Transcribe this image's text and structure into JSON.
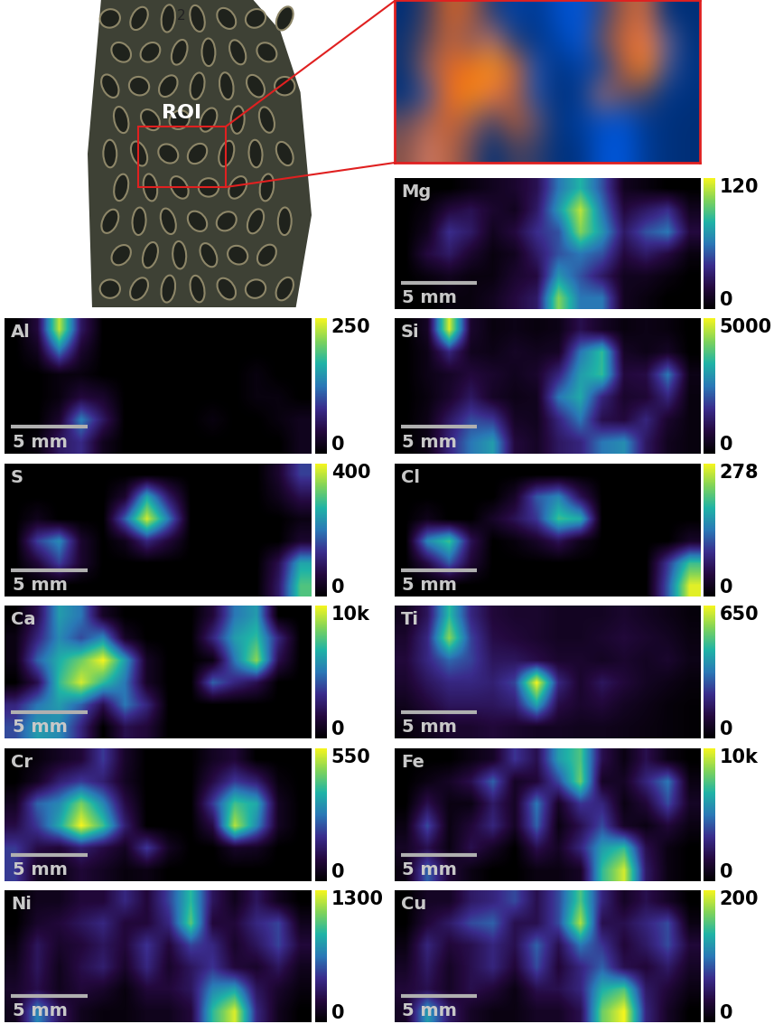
{
  "photo": {
    "label": "ROI",
    "sample": "2"
  },
  "chart_data": [
    {
      "type": "heatmap",
      "title": "Mg",
      "tick_labels": false,
      "xlim": [
        0,
        20
      ],
      "ylim": [
        0,
        8
      ],
      "scale_bar": {
        "label": "5 mm",
        "length": 5
      },
      "clim": [
        0,
        120
      ],
      "cticks": [
        0,
        120
      ],
      "cells": [
        [
          0,
          0,
          0,
          5,
          10,
          15,
          25,
          60,
          80,
          50,
          10,
          5,
          0,
          0
        ],
        [
          0,
          5,
          20,
          25,
          15,
          10,
          30,
          70,
          110,
          60,
          20,
          30,
          40,
          10
        ],
        [
          0,
          10,
          40,
          30,
          10,
          20,
          40,
          50,
          100,
          70,
          30,
          50,
          60,
          20
        ],
        [
          0,
          20,
          30,
          15,
          5,
          10,
          30,
          50,
          60,
          50,
          20,
          30,
          20,
          5
        ],
        [
          0,
          5,
          10,
          5,
          5,
          15,
          20,
          70,
          50,
          30,
          10,
          10,
          5,
          0
        ],
        [
          0,
          0,
          5,
          5,
          10,
          20,
          30,
          100,
          60,
          60,
          10,
          5,
          0,
          0
        ]
      ]
    },
    {
      "type": "heatmap",
      "title": "Al",
      "tick_labels": false,
      "xlim": [
        0,
        20
      ],
      "ylim": [
        0,
        8
      ],
      "scale_bar": {
        "label": "5 mm",
        "length": 5
      },
      "clim": [
        0,
        250
      ],
      "cticks": [
        0,
        250
      ],
      "cells": [
        [
          0,
          40,
          230,
          60,
          0,
          0,
          0,
          0,
          0,
          0,
          0,
          0,
          0,
          0
        ],
        [
          0,
          20,
          120,
          30,
          0,
          0,
          0,
          0,
          0,
          0,
          0,
          0,
          0,
          0
        ],
        [
          0,
          0,
          10,
          10,
          0,
          0,
          0,
          0,
          0,
          0,
          0,
          10,
          0,
          0
        ],
        [
          0,
          0,
          10,
          40,
          30,
          0,
          0,
          0,
          0,
          0,
          0,
          10,
          10,
          0
        ],
        [
          0,
          0,
          30,
          130,
          60,
          0,
          0,
          0,
          0,
          10,
          0,
          0,
          10,
          20
        ],
        [
          0,
          10,
          60,
          80,
          20,
          0,
          0,
          0,
          0,
          0,
          0,
          0,
          0,
          20
        ]
      ]
    },
    {
      "type": "heatmap",
      "title": "Si",
      "tick_labels": false,
      "xlim": [
        0,
        20
      ],
      "ylim": [
        0,
        8
      ],
      "scale_bar": {
        "label": "5 mm",
        "length": 5
      },
      "clim": [
        0,
        5000
      ],
      "cticks": [
        0,
        5000
      ],
      "cells": [
        [
          0,
          500,
          4800,
          600,
          200,
          300,
          200,
          300,
          1000,
          500,
          200,
          300,
          200,
          0
        ],
        [
          0,
          300,
          1500,
          400,
          300,
          500,
          400,
          500,
          2500,
          3500,
          500,
          300,
          500,
          0
        ],
        [
          0,
          300,
          500,
          800,
          600,
          400,
          600,
          1500,
          3000,
          3500,
          800,
          900,
          2500,
          300
        ],
        [
          0,
          200,
          600,
          1200,
          500,
          300,
          400,
          2500,
          3200,
          1500,
          600,
          700,
          1500,
          200
        ],
        [
          0,
          300,
          1200,
          2000,
          1800,
          500,
          400,
          1500,
          2500,
          1000,
          800,
          1500,
          600,
          200
        ],
        [
          0,
          300,
          1500,
          2500,
          3000,
          800,
          500,
          1200,
          1500,
          2500,
          2800,
          1200,
          400,
          200
        ]
      ]
    },
    {
      "type": "heatmap",
      "title": "S",
      "tick_labels": false,
      "xlim": [
        0,
        20
      ],
      "ylim": [
        0,
        8
      ],
      "scale_bar": {
        "label": "5 mm",
        "length": 5
      },
      "clim": [
        0,
        400
      ],
      "cticks": [
        0,
        400
      ],
      "cells": [
        [
          0,
          0,
          0,
          0,
          0,
          0,
          0,
          0,
          0,
          0,
          0,
          0,
          50,
          150
        ],
        [
          0,
          0,
          0,
          0,
          0,
          50,
          250,
          100,
          0,
          0,
          0,
          0,
          30,
          80
        ],
        [
          0,
          30,
          0,
          0,
          0,
          180,
          380,
          200,
          0,
          0,
          0,
          0,
          0,
          20
        ],
        [
          0,
          150,
          220,
          50,
          0,
          30,
          120,
          60,
          0,
          0,
          0,
          0,
          0,
          50
        ],
        [
          0,
          60,
          150,
          50,
          0,
          0,
          0,
          0,
          0,
          0,
          0,
          0,
          80,
          250
        ],
        [
          0,
          0,
          0,
          0,
          0,
          0,
          0,
          0,
          0,
          0,
          0,
          0,
          100,
          300
        ]
      ]
    },
    {
      "type": "heatmap",
      "title": "Cl",
      "tick_labels": false,
      "xlim": [
        0,
        20
      ],
      "ylim": [
        0,
        8
      ],
      "scale_bar": {
        "label": "5 mm",
        "length": 5
      },
      "clim": [
        0,
        278
      ],
      "cticks": [
        0,
        278
      ],
      "cells": [
        [
          0,
          0,
          0,
          0,
          0,
          0,
          0,
          0,
          0,
          0,
          0,
          0,
          0,
          0
        ],
        [
          0,
          0,
          0,
          0,
          0,
          30,
          120,
          150,
          60,
          0,
          0,
          0,
          0,
          0
        ],
        [
          0,
          20,
          0,
          0,
          30,
          60,
          100,
          200,
          180,
          0,
          0,
          0,
          0,
          0
        ],
        [
          0,
          150,
          200,
          60,
          0,
          10,
          30,
          60,
          20,
          0,
          0,
          0,
          0,
          30
        ],
        [
          0,
          50,
          120,
          40,
          0,
          0,
          0,
          0,
          0,
          0,
          0,
          0,
          100,
          200
        ],
        [
          0,
          0,
          0,
          0,
          0,
          0,
          0,
          0,
          0,
          0,
          0,
          0,
          120,
          270
        ]
      ]
    },
    {
      "type": "heatmap",
      "title": "Ca",
      "tick_labels": false,
      "xlim": [
        0,
        20
      ],
      "ylim": [
        0,
        8
      ],
      "scale_bar": {
        "label": "5 mm",
        "length": 5
      },
      "clim": [
        0,
        10000
      ],
      "cticks": [
        0,
        {
          "value": 10000,
          "label": "10k"
        }
      ],
      "cells": [
        [
          0,
          2000,
          6000,
          5000,
          1000,
          0,
          0,
          0,
          0,
          1500,
          5000,
          6000,
          0,
          0
        ],
        [
          500,
          3000,
          5500,
          4000,
          5500,
          1000,
          0,
          0,
          0,
          3000,
          6000,
          7000,
          3000,
          0
        ],
        [
          500,
          4500,
          6500,
          8000,
          10000,
          6000,
          1000,
          0,
          0,
          500,
          5000,
          8500,
          2000,
          0
        ],
        [
          0,
          2000,
          7000,
          9500,
          7000,
          5000,
          1000,
          0,
          0,
          4500,
          3000,
          2000,
          0,
          0
        ],
        [
          3000,
          5000,
          6000,
          4500,
          2000,
          5000,
          3000,
          0,
          0,
          0,
          0,
          0,
          0,
          0
        ],
        [
          4000,
          6000,
          5500,
          3000,
          0,
          2000,
          1500,
          0,
          0,
          0,
          0,
          0,
          0,
          0
        ]
      ]
    },
    {
      "type": "heatmap",
      "title": "Ti",
      "tick_labels": false,
      "xlim": [
        0,
        20
      ],
      "ylim": [
        0,
        8
      ],
      "scale_bar": {
        "label": "5 mm",
        "length": 5
      },
      "clim": [
        0,
        650
      ],
      "cticks": [
        0,
        650
      ],
      "cells": [
        [
          50,
          150,
          450,
          200,
          100,
          80,
          80,
          60,
          60,
          60,
          80,
          60,
          40,
          20
        ],
        [
          80,
          200,
          550,
          250,
          120,
          100,
          80,
          60,
          60,
          80,
          100,
          80,
          60,
          30
        ],
        [
          100,
          200,
          300,
          250,
          150,
          150,
          120,
          80,
          80,
          60,
          80,
          60,
          80,
          40
        ],
        [
          80,
          150,
          200,
          200,
          180,
          250,
          650,
          200,
          80,
          150,
          100,
          60,
          40,
          20
        ],
        [
          50,
          100,
          150,
          150,
          150,
          180,
          400,
          120,
          80,
          100,
          60,
          40,
          20,
          10
        ],
        [
          20,
          50,
          80,
          80,
          100,
          80,
          60,
          60,
          50,
          50,
          40,
          30,
          20,
          10
        ]
      ]
    },
    {
      "type": "heatmap",
      "title": "Cr",
      "tick_labels": false,
      "xlim": [
        0,
        20
      ],
      "ylim": [
        0,
        8
      ],
      "scale_bar": {
        "label": "5 mm",
        "length": 5
      },
      "clim": [
        0,
        550
      ],
      "cticks": [
        0,
        550
      ],
      "cells": [
        [
          0,
          20,
          50,
          80,
          200,
          60,
          0,
          0,
          0,
          50,
          80,
          0,
          0,
          0
        ],
        [
          0,
          50,
          150,
          200,
          150,
          50,
          0,
          0,
          0,
          100,
          200,
          150,
          20,
          0
        ],
        [
          50,
          250,
          300,
          450,
          300,
          100,
          0,
          0,
          0,
          200,
          400,
          350,
          50,
          0
        ],
        [
          100,
          200,
          350,
          550,
          400,
          150,
          0,
          0,
          0,
          100,
          500,
          300,
          50,
          0
        ],
        [
          200,
          100,
          80,
          150,
          100,
          50,
          200,
          50,
          0,
          0,
          60,
          50,
          0,
          0
        ],
        [
          200,
          50,
          30,
          80,
          50,
          20,
          30,
          0,
          0,
          0,
          0,
          0,
          0,
          0
        ]
      ]
    },
    {
      "type": "heatmap",
      "title": "Fe",
      "tick_labels": false,
      "xlim": [
        0,
        20
      ],
      "ylim": [
        0,
        8
      ],
      "scale_bar": {
        "label": "5 mm",
        "length": 5
      },
      "clim": [
        0,
        10000
      ],
      "cticks": [
        0,
        {
          "value": 10000,
          "label": "10k"
        }
      ],
      "cells": [
        [
          0,
          0,
          0,
          500,
          1000,
          3500,
          2000,
          6000,
          7500,
          2000,
          500,
          2000,
          500,
          0
        ],
        [
          0,
          500,
          1000,
          2000,
          4500,
          1000,
          1500,
          4000,
          8000,
          1000,
          1000,
          3000,
          5000,
          500
        ],
        [
          0,
          2000,
          500,
          500,
          2500,
          1000,
          5000,
          1000,
          3500,
          3000,
          500,
          1500,
          4000,
          1000
        ],
        [
          500,
          4000,
          500,
          1500,
          3000,
          1000,
          4500,
          500,
          2000,
          4000,
          1000,
          500,
          1500,
          500
        ],
        [
          1000,
          2000,
          500,
          2000,
          1000,
          0,
          2000,
          1000,
          3000,
          6000,
          7000,
          2000,
          500,
          0
        ],
        [
          500,
          4500,
          1500,
          500,
          0,
          0,
          500,
          500,
          1000,
          7000,
          9500,
          2500,
          500,
          0
        ]
      ]
    },
    {
      "type": "heatmap",
      "title": "Ni",
      "tick_labels": false,
      "xlim": [
        0,
        20
      ],
      "ylim": [
        0,
        8
      ],
      "scale_bar": {
        "label": "5 mm",
        "length": 5
      },
      "clim": [
        0,
        1300
      ],
      "cticks": [
        0,
        1300
      ],
      "cells": [
        [
          0,
          100,
          100,
          200,
          200,
          400,
          200,
          500,
          900,
          300,
          100,
          300,
          100,
          0
        ],
        [
          0,
          150,
          200,
          300,
          400,
          200,
          200,
          400,
          1000,
          200,
          200,
          400,
          500,
          100
        ],
        [
          50,
          300,
          150,
          200,
          300,
          200,
          450,
          200,
          500,
          400,
          150,
          300,
          500,
          200
        ],
        [
          100,
          300,
          100,
          250,
          350,
          150,
          400,
          150,
          300,
          450,
          200,
          150,
          300,
          100
        ],
        [
          150,
          250,
          100,
          200,
          150,
          50,
          200,
          200,
          300,
          700,
          800,
          300,
          150,
          50
        ],
        [
          100,
          700,
          300,
          100,
          50,
          50,
          100,
          100,
          200,
          900,
          1250,
          400,
          100,
          0
        ]
      ]
    },
    {
      "type": "heatmap",
      "title": "Cu",
      "tick_labels": false,
      "xlim": [
        0,
        20
      ],
      "ylim": [
        0,
        8
      ],
      "scale_bar": {
        "label": "5 mm",
        "length": 5
      },
      "clim": [
        0,
        200
      ],
      "cticks": [
        0,
        200
      ],
      "cells": [
        [
          0,
          20,
          20,
          50,
          60,
          80,
          40,
          80,
          150,
          60,
          20,
          40,
          20,
          0
        ],
        [
          0,
          30,
          50,
          80,
          90,
          40,
          40,
          80,
          180,
          40,
          40,
          60,
          80,
          10
        ],
        [
          10,
          60,
          30,
          40,
          60,
          40,
          90,
          40,
          100,
          70,
          30,
          50,
          80,
          30
        ],
        [
          20,
          50,
          20,
          40,
          60,
          30,
          80,
          30,
          60,
          90,
          40,
          30,
          50,
          20
        ],
        [
          30,
          40,
          20,
          40,
          30,
          10,
          40,
          40,
          60,
          130,
          150,
          50,
          30,
          10
        ],
        [
          20,
          120,
          50,
          20,
          10,
          10,
          20,
          20,
          40,
          160,
          200,
          60,
          20,
          0
        ]
      ]
    }
  ]
}
